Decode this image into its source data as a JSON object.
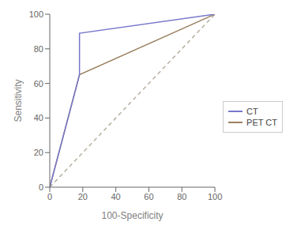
{
  "chart_data": {
    "type": "line",
    "xlabel": "100-Specificity",
    "ylabel": "Sensitivity",
    "xlim": [
      0,
      100
    ],
    "ylim": [
      0,
      100
    ],
    "xticks": [
      0,
      20,
      40,
      60,
      80,
      100
    ],
    "yticks": [
      0,
      20,
      40,
      60,
      80,
      100
    ],
    "grid": false,
    "legend": "right",
    "series": [
      {
        "name": "CT",
        "x": [
          0,
          18,
          18,
          100
        ],
        "values": [
          0,
          65,
          89,
          100
        ],
        "color": "#7777cc"
      },
      {
        "name": "PET CT",
        "x": [
          0,
          18,
          100
        ],
        "values": [
          0,
          65,
          100
        ],
        "color": "#9b8060"
      },
      {
        "x": [
          0,
          100
        ],
        "values": [
          0,
          100
        ],
        "color": "#b8b0a0",
        "line_style": "dashed"
      }
    ]
  }
}
